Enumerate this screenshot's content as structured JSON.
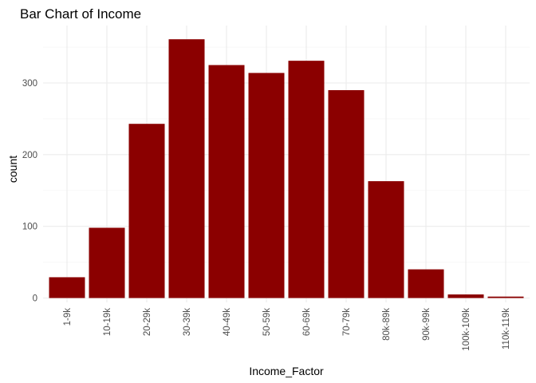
{
  "chart_data": {
    "type": "bar",
    "title": "Bar Chart of Income",
    "xlabel": "Income_Factor",
    "ylabel": "count",
    "categories": [
      "1-9k",
      "10-19k",
      "20-29k",
      "30-39k",
      "40-49k",
      "50-59k",
      "60-69k",
      "70-79k",
      "80k-89k",
      "90k-99k",
      "100k-109k",
      "110k-119k"
    ],
    "values": [
      29,
      98,
      243,
      361,
      325,
      314,
      331,
      290,
      163,
      40,
      5,
      2
    ],
    "ylim": [
      0,
      380
    ],
    "yticks": [
      "0",
      "100",
      "200",
      "300"
    ],
    "grid": true,
    "legend": "none",
    "bar_color": "#8b0000"
  }
}
